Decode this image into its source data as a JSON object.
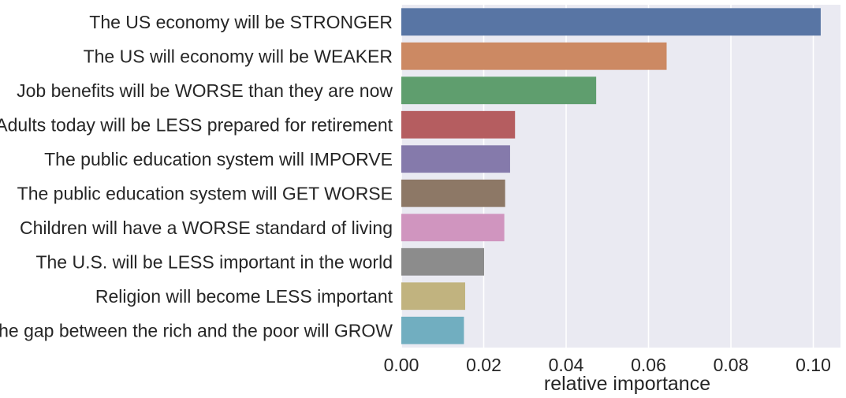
{
  "chart_data": {
    "type": "bar",
    "orientation": "horizontal",
    "categories": [
      "The US economy will be STRONGER",
      "The US will economy will be WEAKER",
      "Job benefits will be WORSE than they are now",
      "Adults today will be LESS prepared for retirement ",
      "The public education system will IMPORVE",
      "The public education system will GET WORSE",
      "Children will have a WORSE standard of living",
      "The U.S. will be LESS important in the world",
      "Religion will become LESS important",
      "The gap between the rich and the poor will GROW"
    ],
    "values": [
      0.1018,
      0.0644,
      0.0473,
      0.0276,
      0.0264,
      0.0252,
      0.025,
      0.0201,
      0.0155,
      0.0152
    ],
    "colors": [
      "#5875a4",
      "#cc8963",
      "#5f9e6e",
      "#b55d60",
      "#857aab",
      "#8d7866",
      "#d095bf",
      "#8c8c8c",
      "#c1b37f",
      "#71aec0"
    ],
    "title": "",
    "xlabel": "relative importance",
    "ylabel": "",
    "xlim": [
      0,
      0.1066
    ],
    "xticks": [
      0.0,
      0.02,
      0.04,
      0.06,
      0.08,
      0.1
    ],
    "xtick_labels": [
      "0.00",
      "0.02",
      "0.04",
      "0.06",
      "0.08",
      "0.10"
    ],
    "grid": true,
    "background_color": "#eaeaf2",
    "grid_color": "#ffffff"
  }
}
